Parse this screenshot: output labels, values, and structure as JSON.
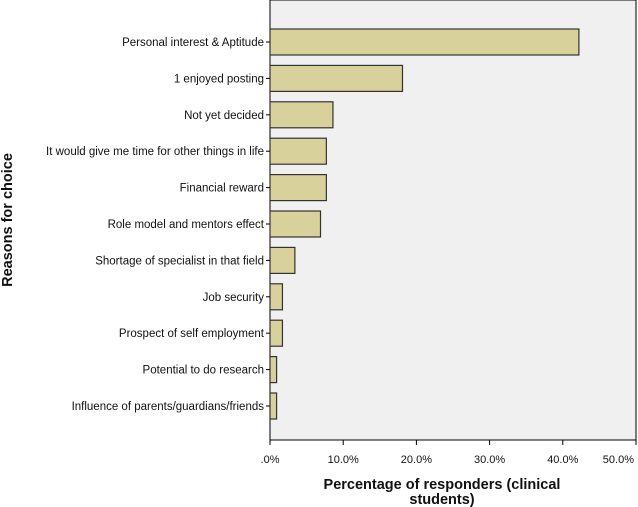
{
  "chart_data": {
    "type": "bar",
    "orientation": "horizontal",
    "categories": [
      "Personal interest & Aptitude",
      "1 enjoyed posting",
      "Not yet decided",
      "It would give me time for other things in life",
      "Financial reward",
      "Role model and mentors effect",
      "Shortage of specialist in that field",
      "Job security",
      "Prospect of self employment",
      "Potential to do research",
      "Influence of parents/guardians/friends"
    ],
    "values": [
      42.2,
      18.1,
      8.6,
      7.7,
      7.7,
      6.9,
      3.4,
      1.7,
      1.7,
      0.9,
      0.9
    ],
    "xlabel_lines": [
      "Percentage of responders (clinical",
      "students)"
    ],
    "ylabel": "Reasons for choice",
    "xlim": [
      0,
      50
    ],
    "xticks": [
      0,
      10,
      20,
      30,
      40,
      50
    ],
    "xtick_labels": [
      ".0%",
      "10.0%",
      "20.0%",
      "30.0%",
      "40.0%",
      "50.0%"
    ],
    "grid": false,
    "legend": false,
    "bar_color": "#d8d19c",
    "bar_edge_color": "#333333",
    "plot_background": "#f0f0f0"
  }
}
